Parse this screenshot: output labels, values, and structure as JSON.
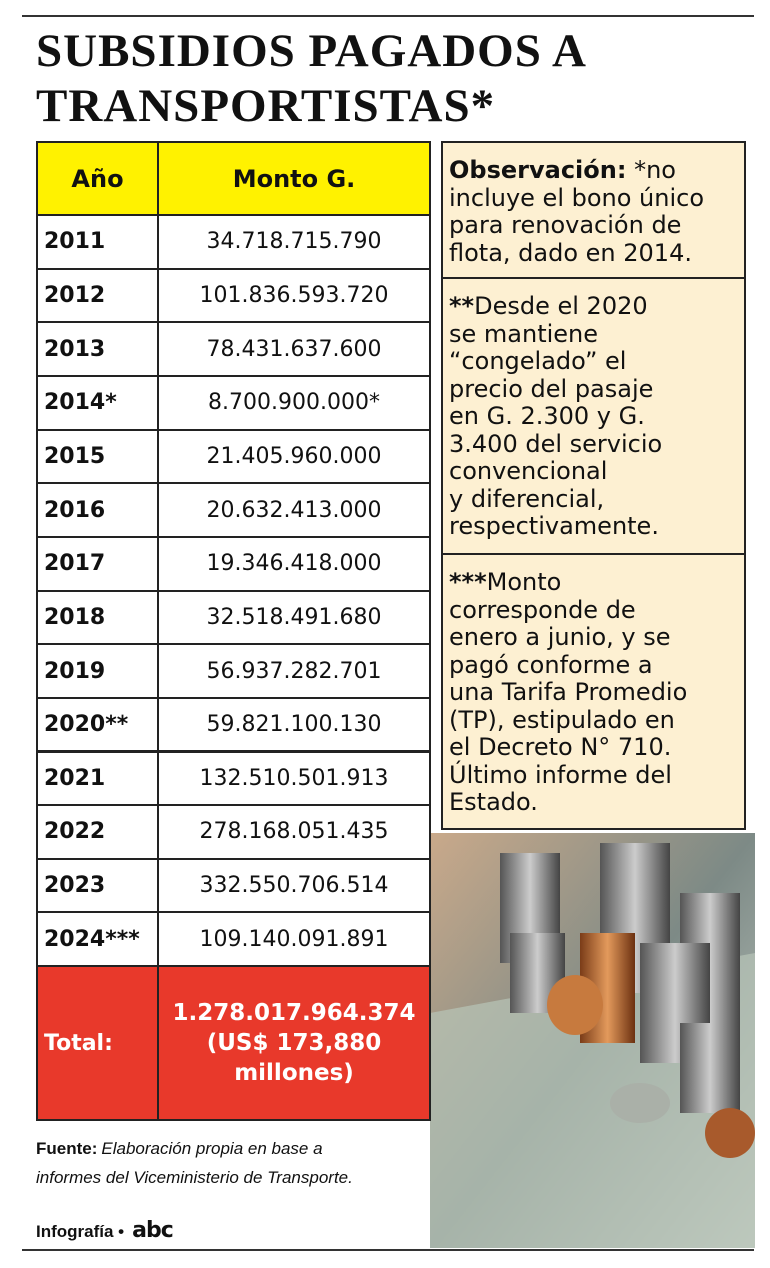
{
  "header": {
    "title_lines": [
      "SUBSIDIOS PAGADOS A",
      "TRANSPORTISTAS*"
    ]
  },
  "table": {
    "columns": [
      "Año",
      "Monto G."
    ],
    "rows": [
      [
        "2011",
        "34.718.715.790"
      ],
      [
        "2012",
        "101.836.593.720"
      ],
      [
        "2013",
        "78.431.637.600"
      ],
      [
        "2014*",
        "8.700.900.000*"
      ],
      [
        "2015",
        "21.405.960.000"
      ],
      [
        "2016",
        "20.632.413.000"
      ],
      [
        "2017",
        "19.346.418.000"
      ],
      [
        "2018",
        "32.518.491.680"
      ],
      [
        "2019",
        "56.937.282.701"
      ],
      [
        "2020**",
        "59.821.100.130"
      ],
      [
        "2021",
        "132.510.501.913"
      ],
      [
        "2022",
        "278.168.051.435"
      ],
      [
        "2023",
        "332.550.706.514"
      ],
      [
        "2024***",
        "109.140.091.891"
      ]
    ],
    "total": {
      "label": "Total:",
      "value_lines": [
        "1.278.017.964.374",
        "(US$ 173,880",
        "millones)"
      ]
    }
  },
  "notes": [
    {
      "lead": "Observación:",
      "lines": [
        " *no",
        "incluye el bono único",
        "para renovación de",
        "flota, dado en 2014."
      ]
    },
    {
      "lead": "**",
      "lines": [
        "Desde el 2020",
        "se mantiene",
        "“congelado” el",
        "precio del pasaje",
        "en G. 2.300 y G.",
        "3.400 del servicio",
        "convencional",
        "y diferencial,",
        "respectivamente."
      ]
    },
    {
      "lead": "***",
      "lines": [
        "Monto",
        "corresponde de",
        "enero a junio, y se",
        "pagó conforme a",
        "una Tarifa Promedio",
        "(TP), estipulado en",
        "el Decreto N° 710.",
        "Último informe del",
        "Estado."
      ]
    }
  ],
  "footer": {
    "source_label": "Fuente:",
    "source_lines": [
      "Elaboración propia en base a",
      "informes del Viceministerio de Transporte."
    ],
    "credit": "Infografía •",
    "brand": "abc"
  }
}
